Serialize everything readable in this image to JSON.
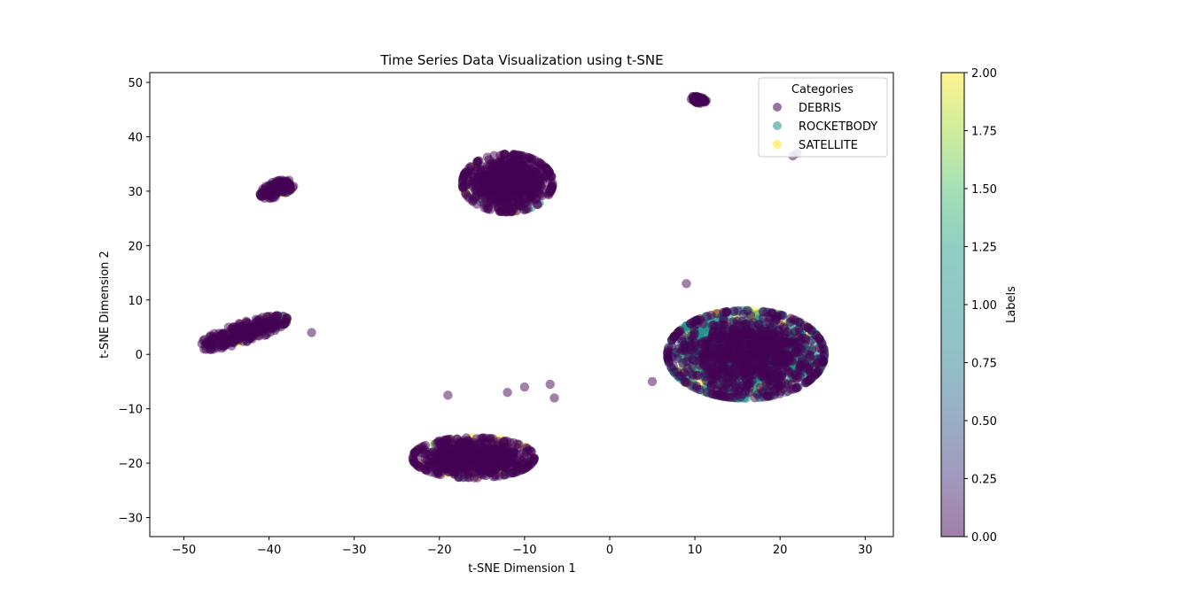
{
  "chart_data": {
    "type": "scatter",
    "title": "Time Series Data Visualization using t-SNE",
    "xlabel": "t-SNE Dimension 1",
    "ylabel": "t-SNE Dimension 2",
    "xlim": [
      -54,
      33.3
    ],
    "ylim": [
      -33.5,
      51.8
    ],
    "xticks": [
      -50,
      -40,
      -30,
      -20,
      -10,
      0,
      10,
      20,
      30
    ],
    "xtick_labels": [
      "−50",
      "−40",
      "−30",
      "−20",
      "−10",
      "0",
      "10",
      "20",
      "30"
    ],
    "yticks": [
      50,
      40,
      30,
      20,
      10,
      0,
      -10,
      -20,
      -30
    ],
    "ytick_labels": [
      "50",
      "40",
      "30",
      "20",
      "10",
      "0",
      "−10",
      "−20",
      "−30"
    ],
    "grid": false,
    "legend": {
      "title": "Categories",
      "placement": "top-right",
      "entries": [
        "DEBRIS",
        "ROCKETBODY",
        "SATELLITE"
      ]
    },
    "colorbar": {
      "label": "Labels",
      "range": [
        0,
        2
      ],
      "colormap": "viridis",
      "ticks": [
        0.0,
        0.25,
        0.5,
        0.75,
        1.0,
        1.25,
        1.5,
        1.75,
        2.0
      ],
      "tick_labels": [
        "0.00",
        "0.25",
        "0.50",
        "0.75",
        "1.00",
        "1.25",
        "1.50",
        "1.75",
        "2.00"
      ]
    },
    "series": [
      {
        "name": "DEBRIS",
        "label_value": 0,
        "color": "#440154"
      },
      {
        "name": "ROCKETBODY",
        "label_value": 1,
        "color": "#21918c"
      },
      {
        "name": "SATELLITE",
        "label_value": 2,
        "color": "#fde725"
      }
    ],
    "clusters": [
      {
        "center": [
          -43,
          4
        ],
        "spread": [
          5,
          1.5
        ],
        "angle_deg": 28,
        "mix": [
          0.85,
          0.05,
          0.1
        ]
      },
      {
        "center": [
          -39,
          30.5
        ],
        "spread": [
          2.1,
          1.1
        ],
        "angle_deg": 40,
        "mix": [
          0.95,
          0.02,
          0.03
        ]
      },
      {
        "center": [
          -12,
          31.5
        ],
        "spread": [
          4.6,
          4.6
        ],
        "angle_deg": 45,
        "mix": [
          0.88,
          0.06,
          0.06
        ]
      },
      {
        "center": [
          10.5,
          46.8
        ],
        "spread": [
          0.9,
          0.5
        ],
        "angle_deg": -25,
        "mix": [
          1.0,
          0.0,
          0.0
        ]
      },
      {
        "center": [
          -16,
          -19
        ],
        "spread": [
          6.2,
          3.2
        ],
        "angle_deg": 0,
        "mix": [
          0.86,
          0.04,
          0.1
        ]
      },
      {
        "center": [
          16,
          0
        ],
        "spread": [
          8,
          7
        ],
        "angle_deg": 0,
        "mix": [
          0.45,
          0.42,
          0.13
        ]
      }
    ],
    "outlier_points": [
      [
        22,
        37
      ],
      [
        21.5,
        36.5
      ],
      [
        -7,
        -5.5
      ],
      [
        -10,
        -6
      ],
      [
        -12,
        -7
      ],
      [
        -19,
        -7.5
      ],
      [
        -6.5,
        -8
      ],
      [
        -20,
        -20
      ],
      [
        9,
        13
      ],
      [
        -35,
        4
      ],
      [
        5,
        -5
      ]
    ]
  }
}
